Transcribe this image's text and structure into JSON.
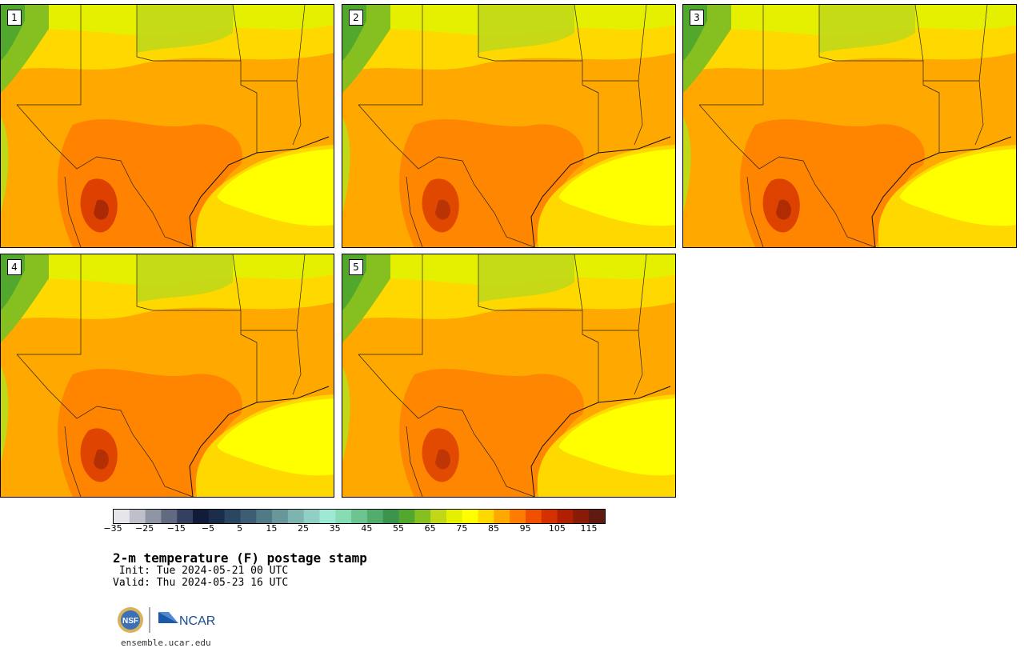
{
  "title": "2-m temperature (F) postage stamp",
  "init": " Init: Tue 2024-05-21 00 UTC",
  "valid": "Valid: Thu 2024-05-23 16 UTC",
  "website": "ensemble.ucar.edu",
  "logos": {
    "nsf": "NSF",
    "ncar": "NCAR"
  },
  "panels": [
    {
      "label": "1",
      "warmth": 0.6
    },
    {
      "label": "2",
      "warmth": 0.45
    },
    {
      "label": "3",
      "warmth": 0.55
    },
    {
      "label": "4",
      "warmth": 0.5
    },
    {
      "label": "5",
      "warmth": 0.4
    }
  ],
  "colorbar": {
    "tick_labels": [
      "−35",
      "−25",
      "−15",
      "−5",
      "5",
      "15",
      "25",
      "35",
      "45",
      "55",
      "65",
      "75",
      "85",
      "95",
      "105",
      "115"
    ],
    "colors": [
      "#e6e6ea",
      "#bdbfcb",
      "#9095a4",
      "#616a80",
      "#34405f",
      "#111c3a",
      "#1a2e4c",
      "#2a4660",
      "#3c5d73",
      "#4f7a86",
      "#67979a",
      "#7db4b0",
      "#90d0c4",
      "#9ee8d6",
      "#88dcb4",
      "#6cc490",
      "#52ac6c",
      "#3a944c",
      "#52a82c",
      "#86c020",
      "#c0d818",
      "#e4f000",
      "#ffff00",
      "#ffd800",
      "#ffa800",
      "#ff7c00",
      "#f05000",
      "#d43000",
      "#b02000",
      "#8a1a08",
      "#601a10"
    ]
  }
}
